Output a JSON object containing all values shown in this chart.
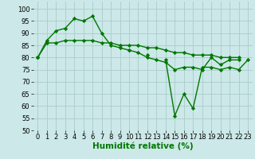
{
  "x": [
    0,
    1,
    2,
    3,
    4,
    5,
    6,
    7,
    8,
    9,
    10,
    11,
    12,
    13,
    14,
    15,
    16,
    17,
    18,
    19,
    20,
    21,
    22,
    23
  ],
  "line1": [
    80,
    87,
    91,
    92,
    96,
    95,
    97,
    90,
    85,
    84,
    83,
    82,
    80,
    79,
    78,
    75,
    76,
    76,
    75,
    80,
    77,
    79,
    79,
    null
  ],
  "line2": [
    80,
    null,
    null,
    null,
    null,
    null,
    null,
    null,
    null,
    null,
    83,
    null,
    81,
    null,
    79,
    56,
    65,
    59,
    76,
    76,
    75,
    76,
    75,
    79
  ],
  "line3": [
    80,
    86,
    86,
    87,
    87,
    87,
    87,
    86,
    86,
    85,
    85,
    85,
    84,
    84,
    83,
    82,
    82,
    81,
    81,
    81,
    80,
    80,
    80,
    null
  ],
  "bg_color": "#cce8e8",
  "grid_color": "#aacccc",
  "line_color": "#007700",
  "marker": "D",
  "markersize": 2.2,
  "xlabel": "Humidité relative (%)",
  "ylim": [
    50,
    103
  ],
  "xlim": [
    -0.5,
    23.5
  ],
  "yticks": [
    50,
    55,
    60,
    65,
    70,
    75,
    80,
    85,
    90,
    95,
    100
  ],
  "xticks": [
    0,
    1,
    2,
    3,
    4,
    5,
    6,
    7,
    8,
    9,
    10,
    11,
    12,
    13,
    14,
    15,
    16,
    17,
    18,
    19,
    20,
    21,
    22,
    23
  ],
  "xlabel_fontsize": 7.5,
  "tick_fontsize": 6.0,
  "linewidth": 1.0
}
